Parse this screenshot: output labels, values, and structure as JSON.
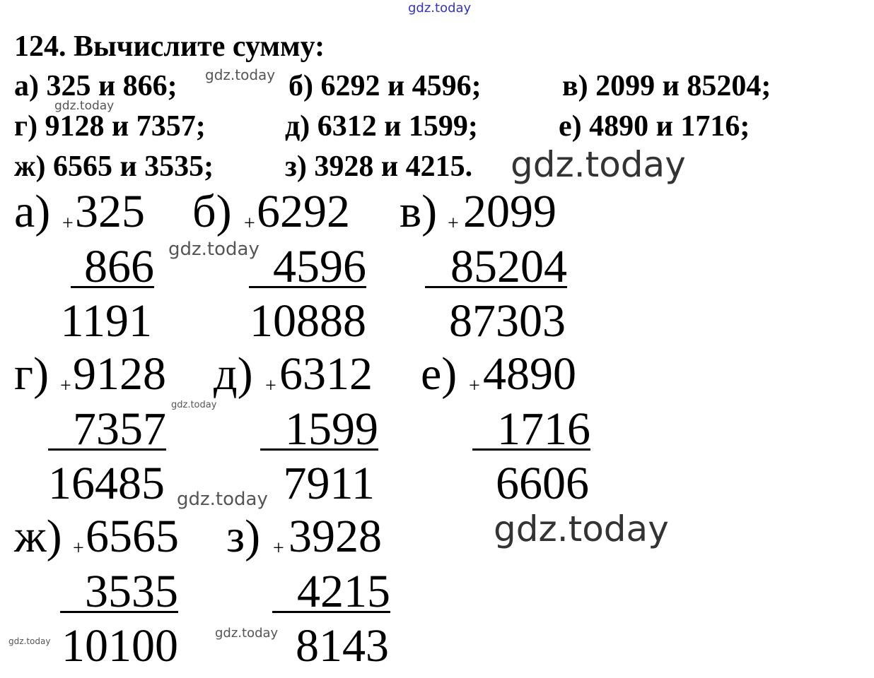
{
  "watermark": "gdz.today",
  "watermark_colors": {
    "top": "#3333cc",
    "other": "#555555"
  },
  "task": {
    "title": "124. Вычислите сумму:",
    "items": [
      "а) 325 и 866;",
      "б) 6292 и 4596;",
      "в) 2099 и 85204;",
      "г) 9128 и 7357;",
      "д) 6312 и 1599;",
      "е) 4890 и 1716;",
      "ж) 6565 и 3535;",
      "з) 3928 и 4215."
    ]
  },
  "solutions": [
    {
      "label": "а)",
      "a": "325",
      "b": "866",
      "sum": "1191"
    },
    {
      "label": "б)",
      "a": "6292",
      "b": "4596",
      "sum": "10888"
    },
    {
      "label": "в)",
      "a": "2099",
      "b": "85204",
      "sum": "87303"
    },
    {
      "label": "г)",
      "a": "9128",
      "b": "7357",
      "sum": "16485"
    },
    {
      "label": "д)",
      "a": "6312",
      "b": "1599",
      "sum": "7911"
    },
    {
      "label": "е)",
      "a": "4890",
      "b": "1716",
      "sum": "6606"
    },
    {
      "label": "ж)",
      "a": "6565",
      "b": "3535",
      "sum": "10100"
    },
    {
      "label": "з)",
      "a": "3928",
      "b": "4215",
      "sum": "8143"
    }
  ],
  "plus_sign": "+"
}
